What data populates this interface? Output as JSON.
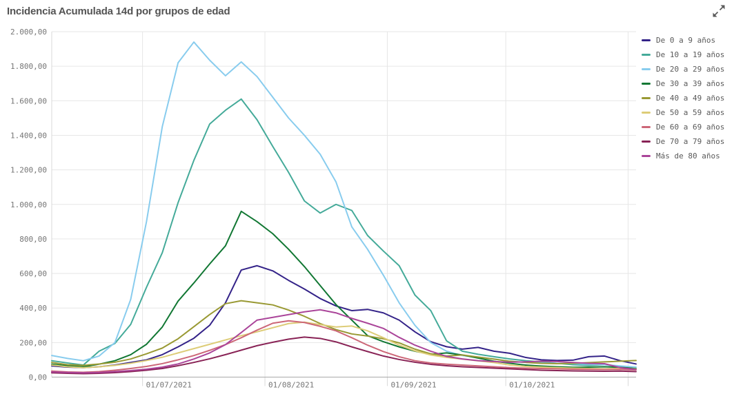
{
  "header": {
    "title": "Incidencia Acumulada 14d por grupos de edad",
    "expand_icon": "expand-arrows"
  },
  "colors": {
    "title_text": "#545454",
    "tick_text": "#757575",
    "legend_text": "#595959",
    "gridline": "#e6e6e6",
    "axis_line": "#a8a8a8",
    "left_axis_line": "#d9d9d9",
    "icon": "#595959"
  },
  "chart_data": {
    "type": "line",
    "title": "Incidencia Acumulada 14d por grupos de edad",
    "xlabel": "",
    "ylabel": "",
    "grid": true,
    "legend_position": "right",
    "x_start_date": "08/06/2021",
    "x_step_days": 4,
    "x_total_days": 148,
    "y_axis": {
      "min": 0,
      "max": 2000,
      "tick_step": 200,
      "tick_labels": [
        "0,00",
        "200,00",
        "400,00",
        "600,00",
        "800,00",
        "1.000,00",
        "1.200,00",
        "1.400,00",
        "1.600,00",
        "1.800,00",
        "2.000,00"
      ]
    },
    "x_ticks": [
      {
        "day": 23,
        "label": "01/07/2021"
      },
      {
        "day": 54,
        "label": "01/08/2021"
      },
      {
        "day": 85,
        "label": "01/09/2021"
      },
      {
        "day": 115,
        "label": "01/10/2021"
      },
      {
        "day": 146,
        "label": ""
      }
    ],
    "series": [
      {
        "name": "De 0 a 9 años",
        "color": "#332288",
        "values": [
          65,
          58,
          55,
          60,
          70,
          85,
          100,
          130,
          175,
          225,
          300,
          430,
          620,
          645,
          615,
          560,
          510,
          455,
          412,
          385,
          392,
          372,
          330,
          262,
          205,
          176,
          162,
          172,
          150,
          138,
          114,
          100,
          96,
          98,
          118,
          122,
          95,
          76
        ]
      },
      {
        "name": "De 10 a 19 años",
        "color": "#44AA99",
        "values": [
          95,
          82,
          70,
          150,
          195,
          305,
          520,
          720,
          1010,
          1255,
          1465,
          1545,
          1610,
          1490,
          1335,
          1185,
          1020,
          950,
          1000,
          965,
          820,
          730,
          645,
          475,
          385,
          210,
          150,
          132,
          118,
          105,
          95,
          88,
          80,
          72,
          68,
          72,
          60,
          48
        ]
      },
      {
        "name": "De 20 a 29 años",
        "color": "#88CCEE",
        "values": [
          125,
          108,
          95,
          122,
          200,
          450,
          900,
          1450,
          1820,
          1940,
          1835,
          1745,
          1825,
          1740,
          1620,
          1500,
          1400,
          1290,
          1130,
          870,
          740,
          590,
          430,
          300,
          200,
          150,
          125,
          115,
          105,
          90,
          85,
          82,
          80,
          78,
          75,
          72,
          65,
          58
        ]
      },
      {
        "name": "De 30 a 39 años",
        "color": "#117733",
        "values": [
          75,
          66,
          60,
          75,
          95,
          130,
          190,
          290,
          440,
          545,
          655,
          760,
          960,
          900,
          830,
          740,
          640,
          530,
          420,
          330,
          240,
          205,
          175,
          150,
          132,
          140,
          128,
          110,
          92,
          80,
          70,
          64,
          60,
          57,
          58,
          60,
          56,
          50
        ]
      },
      {
        "name": "De 40 a 49 años",
        "color": "#999933",
        "values": [
          85,
          72,
          68,
          76,
          86,
          105,
          135,
          168,
          222,
          292,
          362,
          425,
          442,
          430,
          418,
          388,
          352,
          310,
          275,
          250,
          238,
          222,
          198,
          162,
          135,
          122,
          128,
          116,
          104,
          92,
          85,
          80,
          78,
          80,
          84,
          88,
          92,
          96
        ]
      },
      {
        "name": "De 50 a 59 años",
        "color": "#DDCC77",
        "values": [
          70,
          60,
          55,
          60,
          68,
          80,
          96,
          115,
          140,
          165,
          190,
          215,
          240,
          262,
          286,
          310,
          318,
          304,
          290,
          296,
          268,
          228,
          185,
          152,
          128,
          114,
          104,
          94,
          84,
          70,
          62,
          58,
          55,
          52,
          50,
          48,
          50,
          47
        ]
      },
      {
        "name": "De 60 a 69 años",
        "color": "#CC6677",
        "values": [
          35,
          30,
          28,
          32,
          40,
          50,
          62,
          78,
          100,
          125,
          155,
          188,
          228,
          272,
          312,
          326,
          316,
          294,
          268,
          228,
          185,
          148,
          118,
          95,
          82,
          75,
          70,
          65,
          60,
          55,
          52,
          50,
          48,
          46,
          45,
          44,
          45,
          42
        ]
      },
      {
        "name": "De 70 a 79 años",
        "color": "#882255",
        "values": [
          25,
          22,
          20,
          22,
          26,
          32,
          40,
          50,
          66,
          85,
          106,
          130,
          156,
          182,
          202,
          220,
          232,
          224,
          204,
          175,
          148,
          122,
          102,
          86,
          74,
          66,
          60,
          56,
          52,
          48,
          44,
          40,
          38,
          36,
          35,
          34,
          35,
          32
        ]
      },
      {
        "name": "Más de 80 años",
        "color": "#AA4499",
        "values": [
          30,
          27,
          25,
          27,
          32,
          38,
          46,
          58,
          76,
          105,
          140,
          188,
          258,
          330,
          346,
          362,
          378,
          390,
          372,
          340,
          312,
          282,
          230,
          185,
          150,
          120,
          105,
          95,
          90,
          86,
          88,
          92,
          90,
          85,
          80,
          78,
          55,
          44
        ]
      }
    ]
  }
}
